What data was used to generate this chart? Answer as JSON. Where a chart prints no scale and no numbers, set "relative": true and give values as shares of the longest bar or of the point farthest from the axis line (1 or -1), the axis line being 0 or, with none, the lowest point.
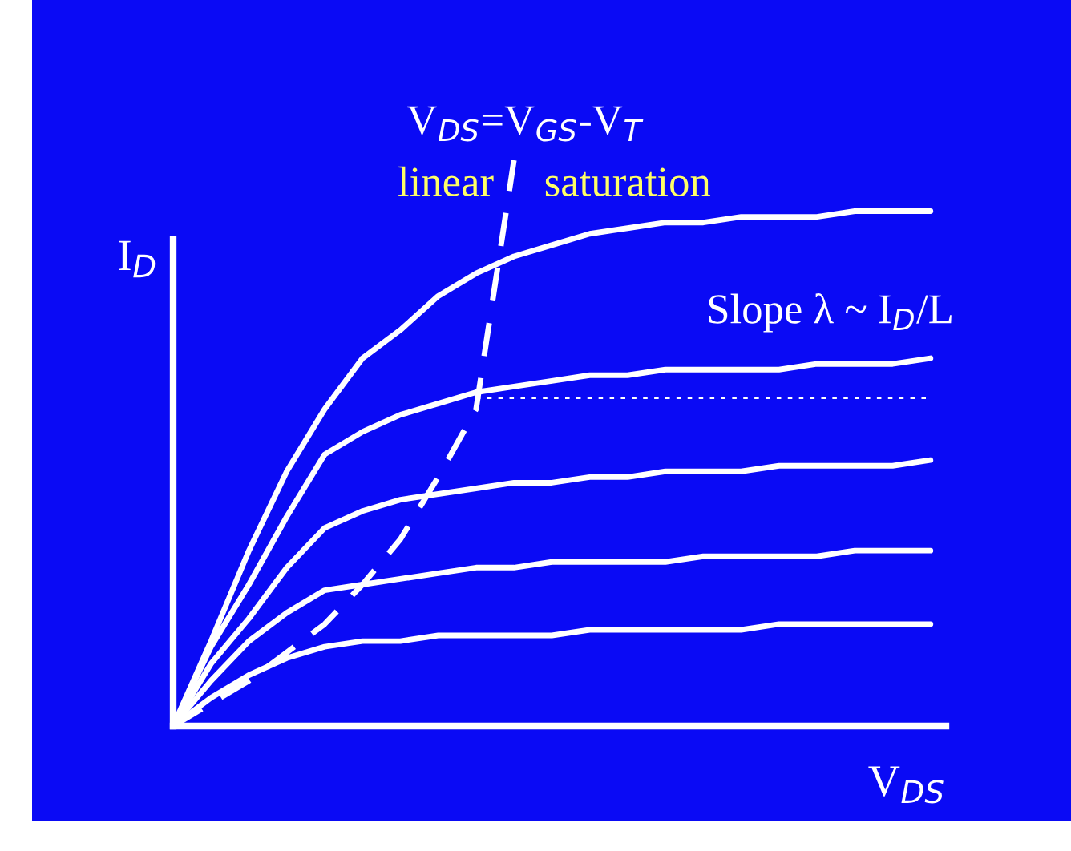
{
  "chart_data": {
    "type": "line",
    "relative": true,
    "xlabel": "V$_{DS}$",
    "ylabel": "I$_{D}$",
    "legend": false,
    "marker": "none",
    "annotations": [
      "V$_{DS}$=V$_{GS}$-V$_{T}$",
      "linear",
      "saturation",
      "Slope λ ~ I$_{D}$/L"
    ],
    "categories": [
      null,
      null,
      null,
      null,
      null,
      null,
      null,
      null,
      null,
      null,
      null,
      null,
      null,
      null,
      null,
      null,
      null,
      null,
      null,
      null,
      null
    ],
    "series": [
      {
        "color": "#ffffff",
        "line_style": "solid",
        "values": [
          0,
          0.15,
          0.31,
          0.45,
          0.56,
          0.65,
          0.7,
          0.76,
          0.8,
          0.83,
          0.85,
          0.87,
          0.88,
          0.89,
          0.89,
          0.9,
          0.9,
          0.9,
          0.91,
          0.91,
          0.91
        ]
      },
      {
        "color": "#ffffff",
        "line_style": "solid",
        "values": [
          0,
          0.14,
          0.25,
          0.37,
          0.48,
          0.52,
          0.55,
          0.57,
          0.59,
          0.6,
          0.61,
          0.62,
          0.62,
          0.63,
          0.63,
          0.63,
          0.63,
          0.64,
          0.64,
          0.64,
          0.65
        ]
      },
      {
        "color": "#ffffff",
        "line_style": "solid",
        "values": [
          0,
          0.11,
          0.19,
          0.28,
          0.35,
          0.38,
          0.4,
          0.41,
          0.42,
          0.43,
          0.43,
          0.44,
          0.44,
          0.45,
          0.45,
          0.45,
          0.46,
          0.46,
          0.46,
          0.46,
          0.47
        ]
      },
      {
        "color": "#ffffff",
        "line_style": "solid",
        "values": [
          0,
          0.08,
          0.15,
          0.2,
          0.24,
          0.25,
          0.26,
          0.27,
          0.28,
          0.28,
          0.29,
          0.29,
          0.29,
          0.29,
          0.3,
          0.3,
          0.3,
          0.3,
          0.31,
          0.31,
          0.31
        ]
      },
      {
        "color": "#ffffff",
        "line_style": "solid",
        "values": [
          0,
          0.05,
          0.09,
          0.12,
          0.14,
          0.15,
          0.15,
          0.16,
          0.16,
          0.16,
          0.16,
          0.17,
          0.17,
          0.17,
          0.17,
          0.17,
          0.18,
          0.18,
          0.18,
          0.18,
          0.18
        ]
      },
      {
        "color": "#ffffff",
        "line_style": "dashed",
        "values": [
          0,
          0.04,
          0.08,
          0.13,
          0.18,
          0.25,
          0.33,
          0.44,
          0.56,
          1.0,
          null,
          null,
          null,
          null,
          null,
          null,
          null,
          null,
          null,
          null,
          null
        ]
      },
      {
        "color": "#ffffff",
        "line_style": "dotted",
        "values": [
          null,
          null,
          null,
          null,
          null,
          null,
          null,
          null,
          0.58,
          0.58,
          0.58,
          0.58,
          0.58,
          0.58,
          0.58,
          0.58,
          0.58,
          0.58,
          0.58,
          0.58,
          0.58
        ]
      }
    ]
  }
}
